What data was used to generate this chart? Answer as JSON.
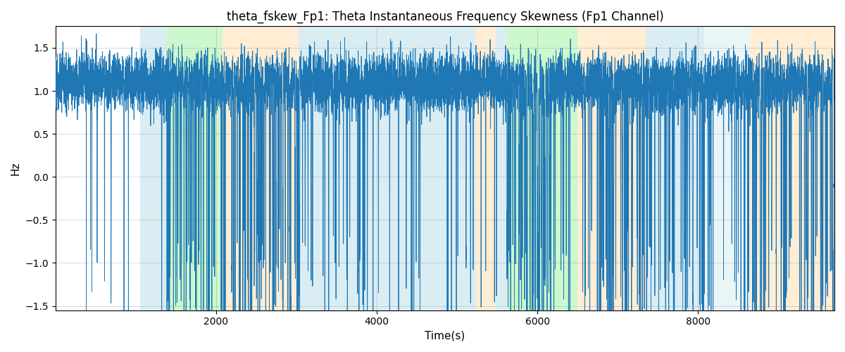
{
  "title": "theta_fskew_Fp1: Theta Instantaneous Frequency Skewness (Fp1 Channel)",
  "xlabel": "Time(s)",
  "ylabel": "Hz",
  "ylim": [
    -1.55,
    1.75
  ],
  "xlim": [
    0,
    9700
  ],
  "line_color": "#1f77b4",
  "line_width": 0.6,
  "bg_color": "white",
  "grid": true,
  "bands": [
    {
      "xmin": 1050,
      "xmax": 1380,
      "color": "#add8e6",
      "alpha": 0.45
    },
    {
      "xmin": 1380,
      "xmax": 2080,
      "color": "#90ee90",
      "alpha": 0.45
    },
    {
      "xmin": 2080,
      "xmax": 3030,
      "color": "#ffd9a0",
      "alpha": 0.45
    },
    {
      "xmin": 3030,
      "xmax": 5230,
      "color": "#add8e6",
      "alpha": 0.45
    },
    {
      "xmin": 5230,
      "xmax": 5480,
      "color": "#ffd9a0",
      "alpha": 0.45
    },
    {
      "xmin": 5480,
      "xmax": 5620,
      "color": "#add8e6",
      "alpha": 0.45
    },
    {
      "xmin": 5620,
      "xmax": 6500,
      "color": "#90ee90",
      "alpha": 0.45
    },
    {
      "xmin": 6500,
      "xmax": 7350,
      "color": "#ffd9a0",
      "alpha": 0.45
    },
    {
      "xmin": 7350,
      "xmax": 8080,
      "color": "#add8e6",
      "alpha": 0.45
    },
    {
      "xmin": 8080,
      "xmax": 8650,
      "color": "#add8e6",
      "alpha": 0.25
    },
    {
      "xmin": 8650,
      "xmax": 9700,
      "color": "#ffd9a0",
      "alpha": 0.45
    }
  ],
  "yticks": [
    -1.5,
    -1.0,
    -0.5,
    0.0,
    0.5,
    1.0,
    1.5
  ],
  "xticks": [
    2000,
    4000,
    6000,
    8000
  ]
}
